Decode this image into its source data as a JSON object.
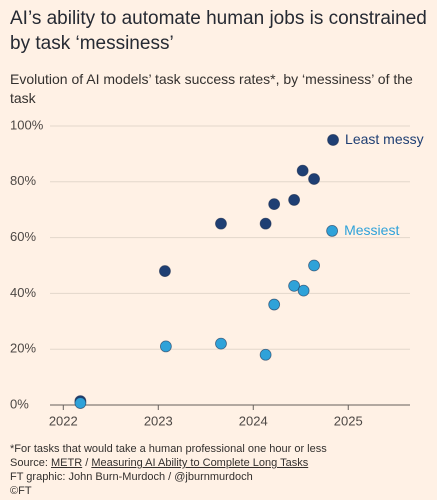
{
  "chart_data": {
    "type": "scatter",
    "title": "AI’s ability to automate human jobs is constrained by task ‘messiness’",
    "subtitle": "Evolution of AI models’ task success rates*, by ‘messiness’ of the task",
    "xlim": [
      2021.86,
      2025.65
    ],
    "xticks": [
      2022,
      2023,
      2024,
      2025
    ],
    "ylim": [
      0,
      100
    ],
    "yticks": [
      {
        "value": 0,
        "label": "0%"
      },
      {
        "value": 20,
        "label": "20%"
      },
      {
        "value": 40,
        "label": "40%"
      },
      {
        "value": 60,
        "label": "60%"
      },
      {
        "value": 80,
        "label": "80%"
      },
      {
        "value": 100,
        "label": "100%"
      }
    ],
    "grid": true,
    "series": [
      {
        "name": "Least messy",
        "color": "#1f3f73",
        "x": [
          2022.18,
          2023.07,
          2023.66,
          2024.13,
          2024.22,
          2024.43,
          2024.52,
          2024.64,
          2024.84
        ],
        "values": [
          1.4,
          48,
          65,
          65,
          72,
          73.5,
          84,
          81,
          95
        ]
      },
      {
        "name": "Messiest",
        "color": "#2fa2d9",
        "x": [
          2022.18,
          2023.08,
          2023.66,
          2024.13,
          2024.22,
          2024.43,
          2024.53,
          2024.64,
          2024.83
        ],
        "values": [
          0.7,
          21,
          22,
          18,
          36,
          42.7,
          41,
          50,
          62.4
        ]
      }
    ],
    "footnote": "*For tasks that would take a human professional one hour or less",
    "source": {
      "label": "Source:",
      "links": [
        "METR",
        "Measuring AI Ability to Complete Long Tasks"
      ],
      "separator": "/"
    },
    "credit": "FT graphic: John Burn-Murdoch / @jburnmurdoch",
    "copyright": "©FT"
  }
}
